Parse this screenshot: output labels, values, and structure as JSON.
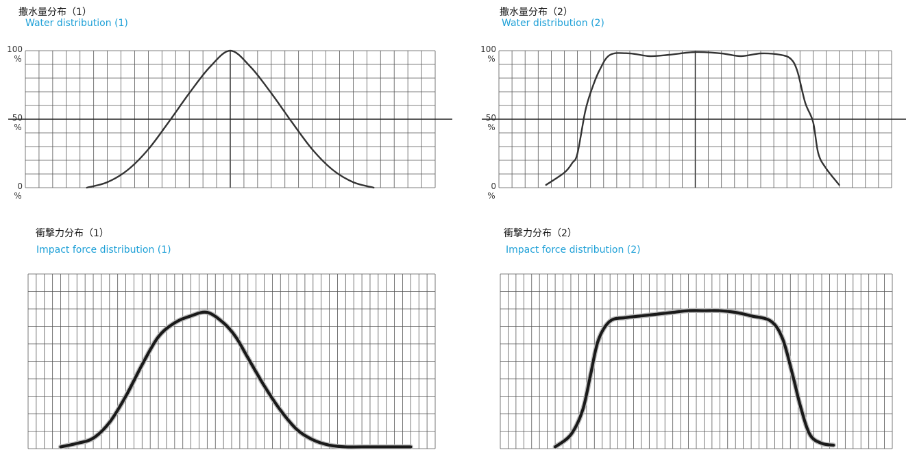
{
  "colors": {
    "english_title": "#1ea0d7",
    "grid": "#555555",
    "curve": "#333333",
    "impact_curve": "#1a1a1a"
  },
  "charts": [
    {
      "title_jp": "撒水量分布（1）",
      "title_en": "Water distribution (1)"
    },
    {
      "title_jp": "撒水量分布（2）",
      "title_en": "Water distribution (2)"
    },
    {
      "title_jp": "衝撃力分布（1）",
      "title_en": "Impact force distribution (1)"
    },
    {
      "title_jp": "衝撃力分布（2）",
      "title_en": "Impact force distribution (2)"
    }
  ],
  "chart_data": [
    {
      "type": "line",
      "title": "撒水量分布（1）",
      "subtitle": "Water distribution (1)",
      "xlim": [
        0,
        30
      ],
      "ylim": [
        0,
        100
      ],
      "y_tick_labels": [
        [
          "100",
          "%"
        ],
        [
          "50",
          "%"
        ],
        [
          "0",
          "%"
        ]
      ],
      "y_ticks": [
        100,
        50,
        0
      ],
      "grid": true,
      "series": [
        {
          "x": [
            4.5,
            6,
            7.5,
            9,
            10.5,
            12,
            13.5,
            15,
            16.5,
            18,
            19.5,
            21,
            22.5,
            24,
            25.5
          ],
          "values": [
            0,
            4,
            13,
            28,
            48,
            69,
            88,
            100,
            88,
            69,
            48,
            28,
            13,
            4,
            0
          ]
        }
      ]
    },
    {
      "type": "line",
      "title": "撒水量分布（2）",
      "subtitle": "Water distribution (2)",
      "xlim": [
        0,
        30
      ],
      "ylim": [
        0,
        100
      ],
      "y_tick_labels": [
        [
          "100",
          "%"
        ],
        [
          "50",
          "%"
        ],
        [
          "0",
          "%"
        ]
      ],
      "y_ticks": [
        100,
        50,
        0
      ],
      "grid": true,
      "series": [
        {
          "x": [
            3.6,
            5.0,
            5.6,
            6.0,
            6.6,
            7.1,
            7.7,
            8.5,
            10,
            11.5,
            13,
            15,
            17,
            18.5,
            20,
            21.5,
            22.3,
            22.8,
            23.4,
            24.0,
            24.4,
            25.0,
            26.0
          ],
          "values": [
            2,
            11,
            18,
            25,
            56,
            72,
            86,
            97,
            98,
            96,
            97,
            99,
            98,
            96,
            98,
            97,
            94,
            85,
            62,
            48,
            25,
            14,
            2
          ]
        }
      ]
    },
    {
      "type": "line",
      "title": "衝撃力分布（1）",
      "subtitle": "Impact force distribution (1)",
      "xlim": [
        0,
        50
      ],
      "ylim": [
        0,
        10
      ],
      "grid": true,
      "series": [
        {
          "x": [
            4,
            6,
            8,
            10,
            12,
            14,
            16,
            18,
            20,
            22,
            24,
            25.5,
            27,
            29,
            31,
            33,
            35,
            37,
            39,
            41,
            43,
            45,
            47
          ],
          "values": [
            0.1,
            0.3,
            0.6,
            1.5,
            3.0,
            4.8,
            6.4,
            7.2,
            7.6,
            7.8,
            7.2,
            6.4,
            5.2,
            3.6,
            2.2,
            1.1,
            0.5,
            0.2,
            0.1,
            0.1,
            0.1,
            0.1,
            0.1
          ]
        }
      ]
    },
    {
      "type": "line",
      "title": "衝撃力分布（2）",
      "subtitle": "Impact force distribution (2)",
      "xlim": [
        0,
        50
      ],
      "ylim": [
        0,
        10
      ],
      "grid": true,
      "series": [
        {
          "x": [
            7,
            9,
            10.5,
            11.5,
            12.5,
            14,
            16,
            18,
            20,
            22,
            24,
            26,
            28,
            30,
            32,
            34.5,
            36,
            37.3,
            38.3,
            39.5,
            41,
            42.5
          ],
          "values": [
            0.1,
            0.8,
            2.2,
            4.2,
            6.2,
            7.3,
            7.5,
            7.6,
            7.7,
            7.8,
            7.9,
            7.9,
            7.9,
            7.8,
            7.6,
            7.3,
            6.3,
            4.2,
            2.4,
            0.8,
            0.3,
            0.2
          ]
        }
      ]
    }
  ]
}
